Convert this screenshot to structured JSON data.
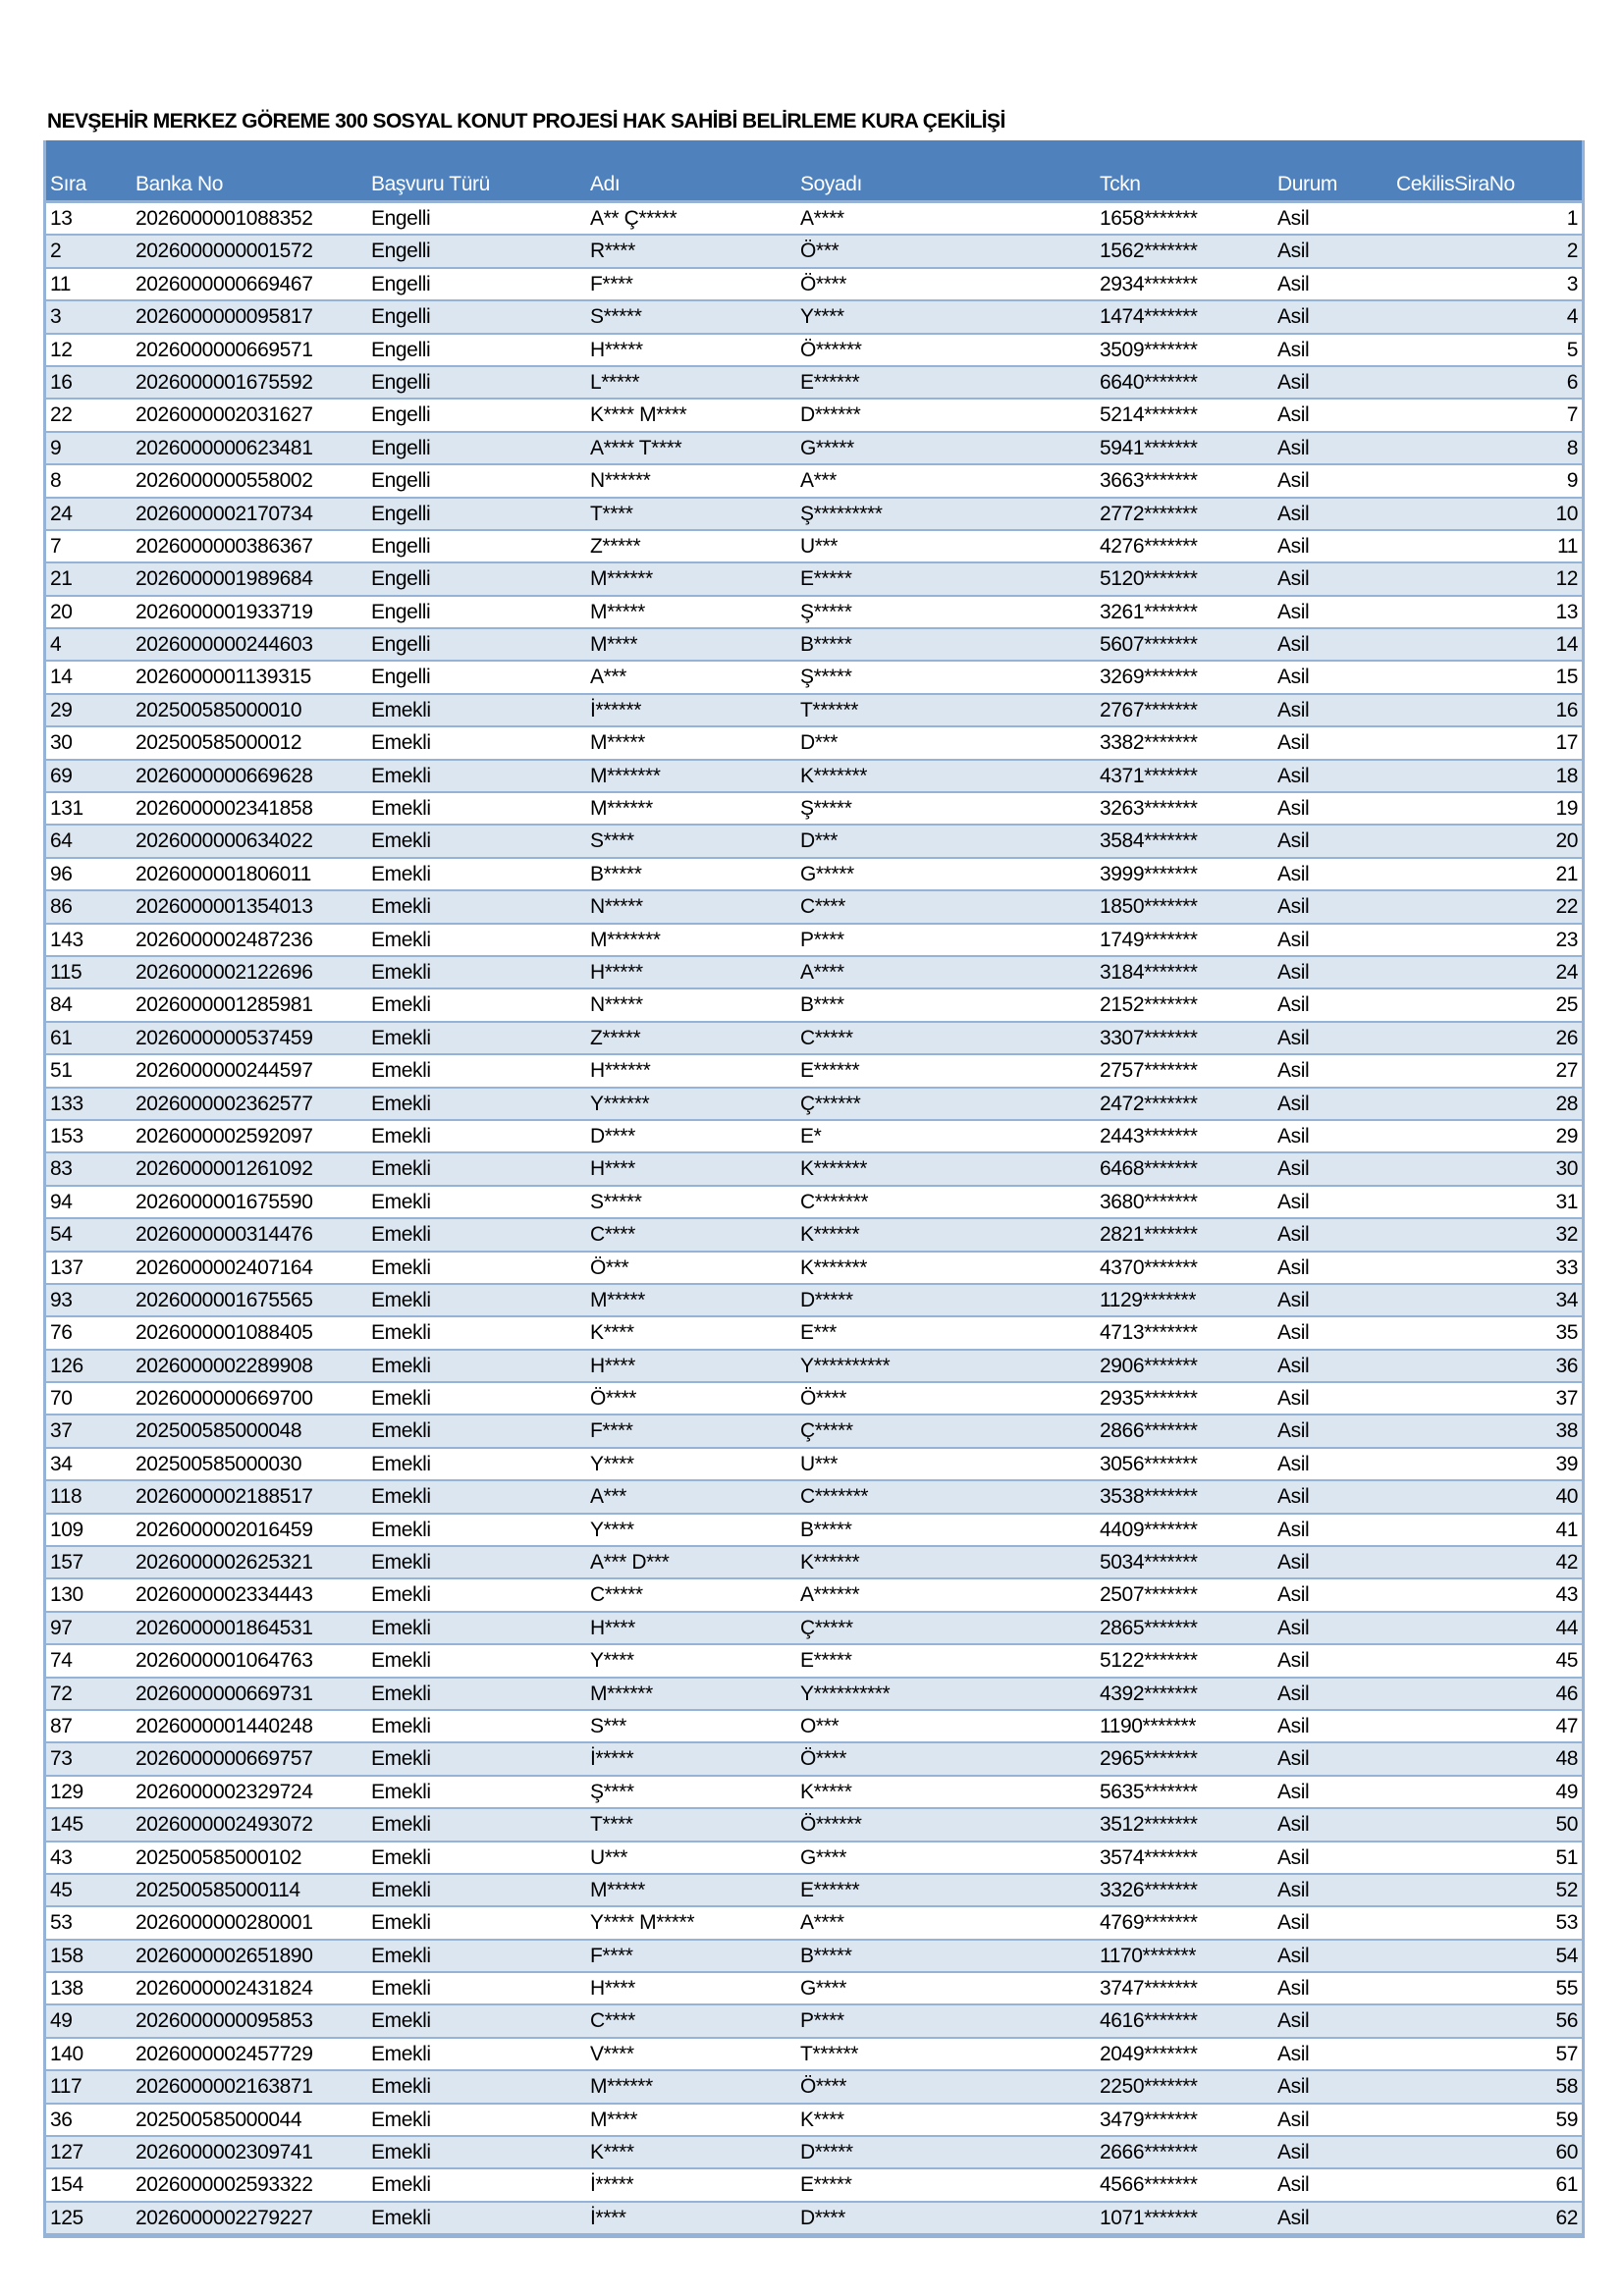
{
  "title": "NEVŞEHİR MERKEZ GÖREME 300 SOSYAL KONUT PROJESİ HAK SAHİBİ BELİRLEME KURA ÇEKİLİŞİ",
  "colors": {
    "header_bg": "#4F81BD",
    "row_alt": "#DCE6F1",
    "border": "#95B3D7"
  },
  "columns": [
    "Sıra",
    "Banka No",
    "Başvuru Türü",
    "Adı",
    "Soyadı",
    "Tckn",
    "Durum",
    "CekilisSiraNo"
  ],
  "rows": [
    [
      "13",
      "2026000001088352",
      "Engelli",
      "A** Ç*****",
      "A****",
      "1658*******",
      "Asil",
      "1"
    ],
    [
      "2",
      "2026000000001572",
      "Engelli",
      "R****",
      "Ö***",
      "1562*******",
      "Asil",
      "2"
    ],
    [
      "11",
      "2026000000669467",
      "Engelli",
      "F****",
      "Ö****",
      "2934*******",
      "Asil",
      "3"
    ],
    [
      "3",
      "2026000000095817",
      "Engelli",
      "S*****",
      "Y****",
      "1474*******",
      "Asil",
      "4"
    ],
    [
      "12",
      "2026000000669571",
      "Engelli",
      "H*****",
      "Ö******",
      "3509*******",
      "Asil",
      "5"
    ],
    [
      "16",
      "2026000001675592",
      "Engelli",
      "L*****",
      "E******",
      "6640*******",
      "Asil",
      "6"
    ],
    [
      "22",
      "2026000002031627",
      "Engelli",
      "K**** M****",
      "D******",
      "5214*******",
      "Asil",
      "7"
    ],
    [
      "9",
      "2026000000623481",
      "Engelli",
      "A**** T****",
      "G*****",
      "5941*******",
      "Asil",
      "8"
    ],
    [
      "8",
      "2026000000558002",
      "Engelli",
      "N******",
      "A***",
      "3663*******",
      "Asil",
      "9"
    ],
    [
      "24",
      "2026000002170734",
      "Engelli",
      "T****",
      "Ş*********",
      "2772*******",
      "Asil",
      "10"
    ],
    [
      "7",
      "2026000000386367",
      "Engelli",
      "Z*****",
      "U***",
      "4276*******",
      "Asil",
      "11"
    ],
    [
      "21",
      "2026000001989684",
      "Engelli",
      "M******",
      "E*****",
      "5120*******",
      "Asil",
      "12"
    ],
    [
      "20",
      "2026000001933719",
      "Engelli",
      "M*****",
      "Ş*****",
      "3261*******",
      "Asil",
      "13"
    ],
    [
      "4",
      "2026000000244603",
      "Engelli",
      "M****",
      "B*****",
      "5607*******",
      "Asil",
      "14"
    ],
    [
      "14",
      "2026000001139315",
      "Engelli",
      "A***",
      "Ş*****",
      "3269*******",
      "Asil",
      "15"
    ],
    [
      "29",
      "202500585000010",
      "Emekli",
      "İ******",
      "T******",
      "2767*******",
      "Asil",
      "16"
    ],
    [
      "30",
      "202500585000012",
      "Emekli",
      "M*****",
      "D***",
      "3382*******",
      "Asil",
      "17"
    ],
    [
      "69",
      "2026000000669628",
      "Emekli",
      "M*******",
      "K*******",
      "4371*******",
      "Asil",
      "18"
    ],
    [
      "131",
      "2026000002341858",
      "Emekli",
      "M******",
      "Ş*****",
      "3263*******",
      "Asil",
      "19"
    ],
    [
      "64",
      "2026000000634022",
      "Emekli",
      "S****",
      "D***",
      "3584*******",
      "Asil",
      "20"
    ],
    [
      "96",
      "2026000001806011",
      "Emekli",
      "B*****",
      "G*****",
      "3999*******",
      "Asil",
      "21"
    ],
    [
      "86",
      "2026000001354013",
      "Emekli",
      "N*****",
      "C****",
      "1850*******",
      "Asil",
      "22"
    ],
    [
      "143",
      "2026000002487236",
      "Emekli",
      "M*******",
      "P****",
      "1749*******",
      "Asil",
      "23"
    ],
    [
      "115",
      "2026000002122696",
      "Emekli",
      "H*****",
      "A****",
      "3184*******",
      "Asil",
      "24"
    ],
    [
      "84",
      "2026000001285981",
      "Emekli",
      "N*****",
      "B****",
      "2152*******",
      "Asil",
      "25"
    ],
    [
      "61",
      "2026000000537459",
      "Emekli",
      "Z*****",
      "C*****",
      "3307*******",
      "Asil",
      "26"
    ],
    [
      "51",
      "2026000000244597",
      "Emekli",
      "H******",
      "E******",
      "2757*******",
      "Asil",
      "27"
    ],
    [
      "133",
      "2026000002362577",
      "Emekli",
      "Y******",
      "Ç******",
      "2472*******",
      "Asil",
      "28"
    ],
    [
      "153",
      "2026000002592097",
      "Emekli",
      "D****",
      "E*",
      "2443*******",
      "Asil",
      "29"
    ],
    [
      "83",
      "2026000001261092",
      "Emekli",
      "H****",
      "K*******",
      "6468*******",
      "Asil",
      "30"
    ],
    [
      "94",
      "2026000001675590",
      "Emekli",
      "S*****",
      "C*******",
      "3680*******",
      "Asil",
      "31"
    ],
    [
      "54",
      "2026000000314476",
      "Emekli",
      "C****",
      "K******",
      "2821*******",
      "Asil",
      "32"
    ],
    [
      "137",
      "2026000002407164",
      "Emekli",
      "Ö***",
      "K*******",
      "4370*******",
      "Asil",
      "33"
    ],
    [
      "93",
      "2026000001675565",
      "Emekli",
      "M*****",
      "D*****",
      "1129*******",
      "Asil",
      "34"
    ],
    [
      "76",
      "2026000001088405",
      "Emekli",
      "K****",
      "E***",
      "4713*******",
      "Asil",
      "35"
    ],
    [
      "126",
      "2026000002289908",
      "Emekli",
      "H****",
      "Y**********",
      "2906*******",
      "Asil",
      "36"
    ],
    [
      "70",
      "2026000000669700",
      "Emekli",
      "Ö****",
      "Ö****",
      "2935*******",
      "Asil",
      "37"
    ],
    [
      "37",
      "202500585000048",
      "Emekli",
      "F****",
      "Ç*****",
      "2866*******",
      "Asil",
      "38"
    ],
    [
      "34",
      "202500585000030",
      "Emekli",
      "Y****",
      "U***",
      "3056*******",
      "Asil",
      "39"
    ],
    [
      "118",
      "2026000002188517",
      "Emekli",
      "A***",
      "C*******",
      "3538*******",
      "Asil",
      "40"
    ],
    [
      "109",
      "2026000002016459",
      "Emekli",
      "Y****",
      "B*****",
      "4409*******",
      "Asil",
      "41"
    ],
    [
      "157",
      "2026000002625321",
      "Emekli",
      "A*** D***",
      "K******",
      "5034*******",
      "Asil",
      "42"
    ],
    [
      "130",
      "2026000002334443",
      "Emekli",
      "C*****",
      "A******",
      "2507*******",
      "Asil",
      "43"
    ],
    [
      "97",
      "2026000001864531",
      "Emekli",
      "H****",
      "Ç*****",
      "2865*******",
      "Asil",
      "44"
    ],
    [
      "74",
      "2026000001064763",
      "Emekli",
      "Y****",
      "E*****",
      "5122*******",
      "Asil",
      "45"
    ],
    [
      "72",
      "2026000000669731",
      "Emekli",
      "M******",
      "Y**********",
      "4392*******",
      "Asil",
      "46"
    ],
    [
      "87",
      "2026000001440248",
      "Emekli",
      "S***",
      "O***",
      "1190*******",
      "Asil",
      "47"
    ],
    [
      "73",
      "2026000000669757",
      "Emekli",
      "İ*****",
      "Ö****",
      "2965*******",
      "Asil",
      "48"
    ],
    [
      "129",
      "2026000002329724",
      "Emekli",
      "Ş****",
      "K*****",
      "5635*******",
      "Asil",
      "49"
    ],
    [
      "145",
      "2026000002493072",
      "Emekli",
      "T****",
      "Ö******",
      "3512*******",
      "Asil",
      "50"
    ],
    [
      "43",
      "202500585000102",
      "Emekli",
      "U***",
      "G****",
      "3574*******",
      "Asil",
      "51"
    ],
    [
      "45",
      "202500585000114",
      "Emekli",
      "M*****",
      "E******",
      "3326*******",
      "Asil",
      "52"
    ],
    [
      "53",
      "2026000000280001",
      "Emekli",
      "Y**** M*****",
      "A****",
      "4769*******",
      "Asil",
      "53"
    ],
    [
      "158",
      "2026000002651890",
      "Emekli",
      "F****",
      "B*****",
      "1170*******",
      "Asil",
      "54"
    ],
    [
      "138",
      "2026000002431824",
      "Emekli",
      "H****",
      "G****",
      "3747*******",
      "Asil",
      "55"
    ],
    [
      "49",
      "2026000000095853",
      "Emekli",
      "C****",
      "P****",
      "4616*******",
      "Asil",
      "56"
    ],
    [
      "140",
      "2026000002457729",
      "Emekli",
      "V****",
      "T******",
      "2049*******",
      "Asil",
      "57"
    ],
    [
      "117",
      "2026000002163871",
      "Emekli",
      "M******",
      "Ö****",
      "2250*******",
      "Asil",
      "58"
    ],
    [
      "36",
      "202500585000044",
      "Emekli",
      "M****",
      "K****",
      "3479*******",
      "Asil",
      "59"
    ],
    [
      "127",
      "2026000002309741",
      "Emekli",
      "K****",
      "D*****",
      "2666*******",
      "Asil",
      "60"
    ],
    [
      "154",
      "2026000002593322",
      "Emekli",
      "İ*****",
      "E*****",
      "4566*******",
      "Asil",
      "61"
    ],
    [
      "125",
      "2026000002279227",
      "Emekli",
      "İ****",
      "D****",
      "1071*******",
      "Asil",
      "62"
    ]
  ]
}
